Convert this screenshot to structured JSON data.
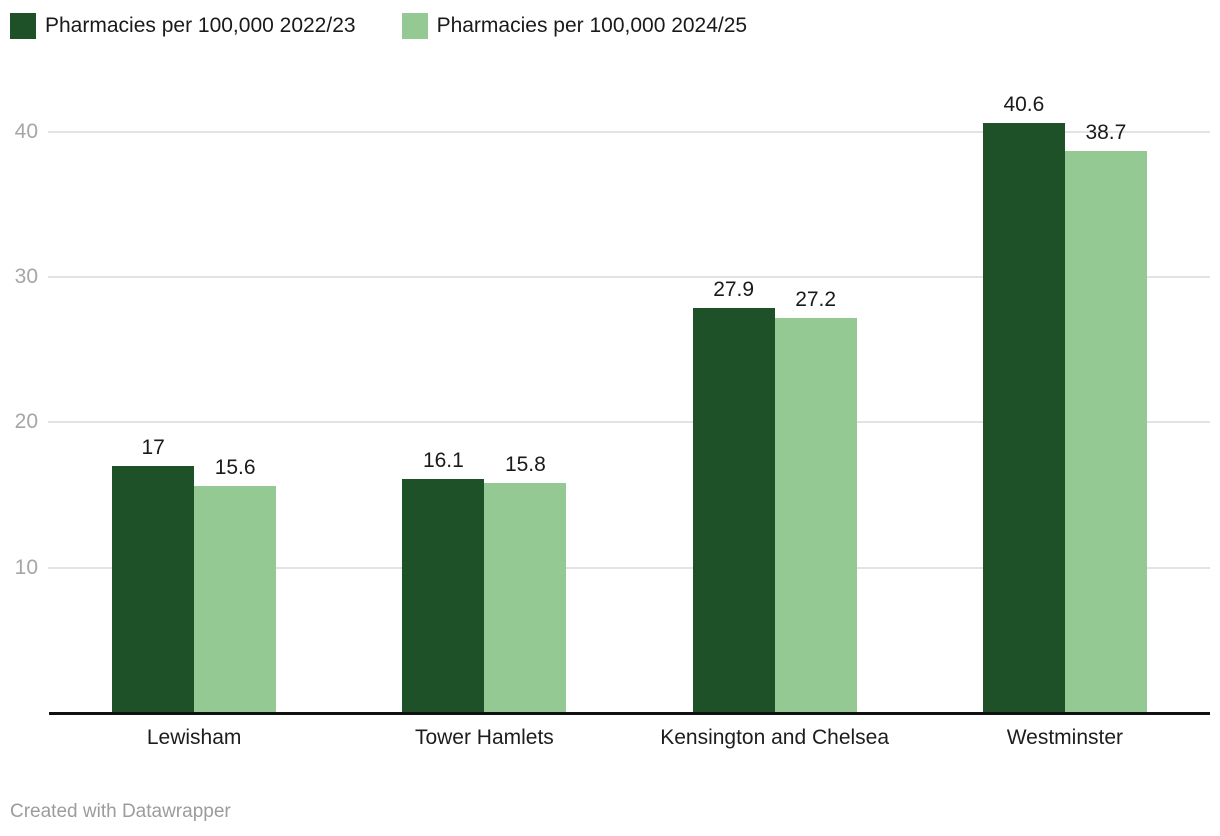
{
  "legend": {
    "items": [
      {
        "label": "Pharmacies per 100,000 2022/23",
        "color": "#1e5128"
      },
      {
        "label": "Pharmacies per 100,000 2024/25",
        "color": "#94c994"
      }
    ]
  },
  "chart_data": {
    "type": "bar",
    "grouped": true,
    "title": "",
    "xlabel": "",
    "ylabel": "",
    "categories": [
      "Lewisham",
      "Tower Hamlets",
      "Kensington and Chelsea",
      "Westminster"
    ],
    "series": [
      {
        "name": "Pharmacies per 100,000 2022/23",
        "color": "#1e5128",
        "values": [
          17,
          16.1,
          27.9,
          40.6
        ]
      },
      {
        "name": "Pharmacies per 100,000 2024/25",
        "color": "#94c994",
        "values": [
          15.6,
          15.8,
          27.2,
          38.7
        ]
      }
    ],
    "value_labels": [
      "17",
      "15.6",
      "16.1",
      "15.8",
      "27.9",
      "27.2",
      "40.6",
      "38.7"
    ],
    "yticks": [
      10,
      20,
      30,
      40
    ],
    "ylim": [
      0,
      43
    ],
    "grid": "horizontal",
    "gridline_color": "#e3e3e3",
    "axis_line_color": "#111111",
    "tick_label_color": "#a6a6a6",
    "legend_position": "top-left"
  },
  "footer": {
    "credit": "Created with Datawrapper"
  }
}
